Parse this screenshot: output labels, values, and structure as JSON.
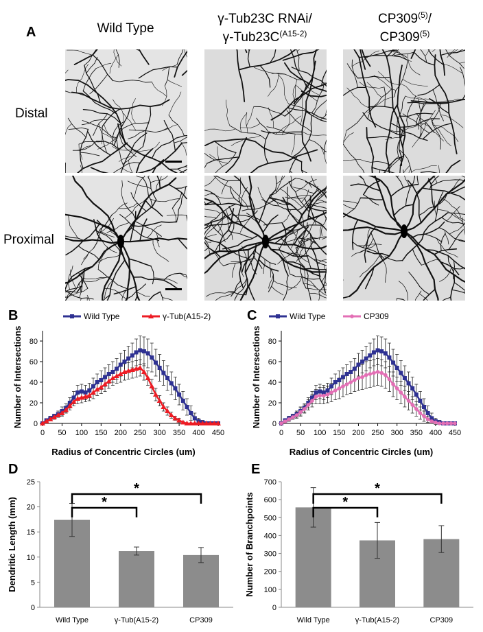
{
  "panel_a": {
    "label": "A",
    "columns": [
      [
        [
          {
            "text": "Wild Type"
          }
        ]
      ],
      [
        [
          {
            "text": "γ-Tub23C RNAi/"
          }
        ],
        [
          {
            "text": "γ-Tub23C"
          },
          {
            "sup": "(A15-2)"
          }
        ]
      ],
      [
        [
          {
            "text": "CP309"
          },
          {
            "sup": "(5)"
          },
          {
            "text": "/"
          }
        ],
        [
          {
            "text": "CP309"
          },
          {
            "sup": "(5)"
          }
        ]
      ]
    ],
    "rows": [
      "Distal",
      "Proximal"
    ]
  },
  "chart_data": [
    {
      "type": "line",
      "panel_label": "B",
      "xlabel": "Radius of Concentric Circles (um)",
      "ylabel": "Number of Intersections",
      "xlim": [
        0,
        450
      ],
      "xticks": [
        0,
        50,
        100,
        150,
        200,
        250,
        300,
        350,
        400,
        450
      ],
      "ylim": [
        0,
        90
      ],
      "yticks": [
        0,
        20,
        40,
        60,
        80
      ],
      "x": [
        0,
        10,
        20,
        30,
        40,
        50,
        60,
        70,
        80,
        90,
        100,
        110,
        120,
        130,
        140,
        150,
        160,
        170,
        180,
        190,
        200,
        210,
        220,
        230,
        240,
        250,
        260,
        270,
        280,
        290,
        300,
        310,
        320,
        330,
        340,
        350,
        360,
        370,
        380,
        390,
        400,
        410,
        420,
        430,
        440,
        450
      ],
      "series": [
        {
          "name": "Wild Type",
          "color": "#2e3192",
          "marker": "square",
          "values": [
            0,
            3,
            5,
            7,
            9,
            12,
            15,
            20,
            25,
            30,
            31,
            30,
            32,
            36,
            40,
            42,
            45,
            48,
            50,
            53,
            57,
            60,
            63,
            66,
            69,
            71,
            70,
            68,
            64,
            59,
            54,
            49,
            44,
            39,
            34,
            28,
            22,
            16,
            10,
            5,
            2,
            1,
            0,
            0,
            0,
            0
          ],
          "errors": [
            0,
            1,
            2,
            2,
            3,
            4,
            4,
            5,
            6,
            7,
            7,
            7,
            7,
            8,
            8,
            9,
            9,
            9,
            10,
            10,
            11,
            11,
            12,
            12,
            13,
            14,
            14,
            14,
            14,
            13,
            13,
            12,
            12,
            11,
            11,
            10,
            9,
            8,
            7,
            5,
            3,
            2,
            0,
            0,
            0,
            0
          ]
        },
        {
          "name": "γ-Tub(A15-2)",
          "color": "#ed1c24",
          "marker": "triangle",
          "values": [
            0,
            2,
            4,
            6,
            8,
            10,
            13,
            17,
            21,
            24,
            25,
            26,
            27,
            30,
            33,
            35,
            38,
            41,
            44,
            46,
            48,
            50,
            51,
            52,
            53,
            54,
            50,
            44,
            36,
            28,
            22,
            16,
            12,
            8,
            5,
            3,
            1,
            0,
            0,
            0,
            0,
            0,
            0,
            0,
            0,
            0
          ],
          "errors": [
            0,
            1,
            1,
            2,
            2,
            3,
            3,
            4,
            4,
            5,
            5,
            5,
            5,
            6,
            6,
            6,
            7,
            7,
            7,
            7,
            8,
            8,
            8,
            8,
            8,
            8,
            8,
            7,
            7,
            6,
            5,
            4,
            4,
            3,
            2,
            2,
            1,
            0,
            0,
            0,
            0,
            0,
            0,
            0,
            0,
            0
          ]
        }
      ]
    },
    {
      "type": "line",
      "panel_label": "C",
      "xlabel": "Radius of Concentric Circles (um)",
      "ylabel": "Number of Intersections",
      "xlim": [
        0,
        450
      ],
      "xticks": [
        0,
        50,
        100,
        150,
        200,
        250,
        300,
        350,
        400,
        450
      ],
      "ylim": [
        0,
        90
      ],
      "yticks": [
        0,
        20,
        40,
        60,
        80
      ],
      "x": [
        0,
        10,
        20,
        30,
        40,
        50,
        60,
        70,
        80,
        90,
        100,
        110,
        120,
        130,
        140,
        150,
        160,
        170,
        180,
        190,
        200,
        210,
        220,
        230,
        240,
        250,
        260,
        270,
        280,
        290,
        300,
        310,
        320,
        330,
        340,
        350,
        360,
        370,
        380,
        390,
        400,
        410,
        420,
        430,
        440,
        450
      ],
      "series": [
        {
          "name": "Wild Type",
          "color": "#2e3192",
          "marker": "square",
          "values": [
            0,
            3,
            5,
            7,
            9,
            12,
            15,
            20,
            25,
            30,
            31,
            30,
            32,
            36,
            40,
            42,
            45,
            48,
            50,
            53,
            57,
            60,
            63,
            66,
            69,
            71,
            70,
            68,
            64,
            59,
            54,
            49,
            44,
            39,
            34,
            28,
            22,
            16,
            10,
            5,
            2,
            1,
            0,
            0,
            0,
            0
          ],
          "errors": [
            0,
            1,
            2,
            2,
            3,
            4,
            4,
            5,
            6,
            7,
            7,
            7,
            7,
            8,
            8,
            9,
            9,
            9,
            10,
            10,
            11,
            11,
            12,
            12,
            13,
            14,
            14,
            14,
            14,
            13,
            13,
            12,
            12,
            11,
            11,
            10,
            9,
            8,
            7,
            5,
            3,
            2,
            0,
            0,
            0,
            0
          ]
        },
        {
          "name": "CP309",
          "color": "#e36fb5",
          "marker": "circle",
          "values": [
            0,
            2,
            4,
            6,
            8,
            11,
            14,
            18,
            22,
            26,
            27,
            27,
            28,
            30,
            32,
            34,
            36,
            38,
            40,
            42,
            44,
            45,
            47,
            48,
            49,
            50,
            49,
            47,
            43,
            38,
            34,
            30,
            26,
            22,
            18,
            14,
            10,
            7,
            4,
            2,
            1,
            0,
            0,
            0,
            0,
            0
          ],
          "errors": [
            0,
            1,
            2,
            2,
            3,
            4,
            4,
            5,
            6,
            7,
            8,
            8,
            8,
            9,
            9,
            10,
            10,
            10,
            11,
            11,
            12,
            12,
            13,
            13,
            13,
            13,
            13,
            13,
            12,
            12,
            11,
            11,
            10,
            9,
            8,
            7,
            6,
            5,
            3,
            2,
            1,
            0,
            0,
            0,
            0,
            0
          ]
        }
      ]
    },
    {
      "type": "bar",
      "panel_label": "D",
      "ylabel": "Dendritic Length (mm)",
      "ylim": [
        0,
        25
      ],
      "yticks": [
        0,
        5,
        10,
        15,
        20,
        25
      ],
      "categories": [
        "Wild Type",
        "γ-Tub(A15-2)",
        "CP309"
      ],
      "values": [
        17.4,
        11.2,
        10.4
      ],
      "errors": [
        3.3,
        0.8,
        1.5
      ],
      "color": "#8c8c8c",
      "significance": [
        {
          "label": "*",
          "from": "Wild Type",
          "to": "γ-Tub(A15-2)"
        },
        {
          "label": "*",
          "from": "Wild Type",
          "to": "CP309"
        }
      ]
    },
    {
      "type": "bar",
      "panel_label": "E",
      "ylabel": "Number of Branchpoints",
      "ylim": [
        0,
        700
      ],
      "yticks": [
        0,
        100,
        200,
        300,
        400,
        500,
        600,
        700
      ],
      "categories": [
        "Wild Type",
        "γ-Tub(A15-2)",
        "CP309"
      ],
      "values": [
        557,
        373,
        380
      ],
      "errors": [
        110,
        100,
        75
      ],
      "color": "#8c8c8c",
      "significance": [
        {
          "label": "*",
          "from": "Wild Type",
          "to": "γ-Tub(A15-2)"
        },
        {
          "label": "*",
          "from": "Wild Type",
          "to": "CP309"
        }
      ]
    }
  ]
}
